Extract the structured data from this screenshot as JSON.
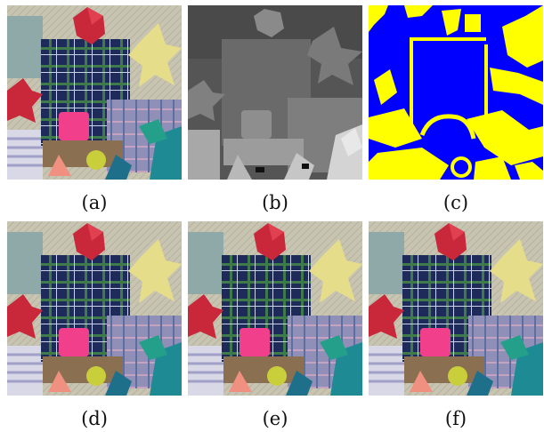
{
  "figure": {
    "panels": [
      {
        "id": "a",
        "caption": "(a)",
        "kind": "photo"
      },
      {
        "id": "b",
        "caption": "(b)",
        "kind": "disparity-map"
      },
      {
        "id": "c",
        "caption": "(c)",
        "kind": "binary-mask"
      },
      {
        "id": "d",
        "caption": "(d)",
        "kind": "photo"
      },
      {
        "id": "e",
        "caption": "(e)",
        "kind": "photo"
      },
      {
        "id": "f",
        "caption": "(f)",
        "kind": "photo"
      }
    ],
    "colors": {
      "mask_blue": "#0000ff",
      "mask_yellow": "#ffff00",
      "plaid_navy": "#1e2a5a",
      "plaid_green": "#3f7a4a",
      "cube_pink": "#f23f8c",
      "polyhedron_red": "#c8283a",
      "star_yellow": "#e6dd8a",
      "teal_block": "#1e8a93"
    }
  }
}
